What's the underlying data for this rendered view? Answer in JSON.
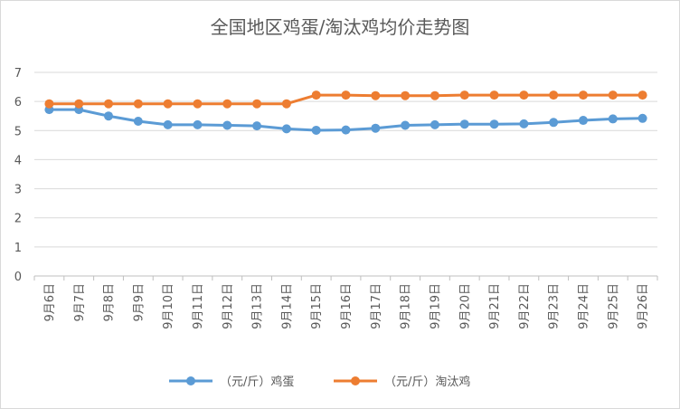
{
  "chart_data": {
    "type": "line",
    "title": "全国地区鸡蛋/淘汰鸡均价走势图",
    "categories": [
      "9月6日",
      "9月7日",
      "9月8日",
      "9月9日",
      "9月10日",
      "9月11日",
      "9月12日",
      "9月13日",
      "9月14日",
      "9月15日",
      "9月16日",
      "9月17日",
      "9月18日",
      "9月19日",
      "9月20日",
      "9月21日",
      "9月22日",
      "9月23日",
      "9月24日",
      "9月25日",
      "9月26日"
    ],
    "series": [
      {
        "name": "（元/斤）鸡蛋",
        "color": "#5b9bd5",
        "values": [
          5.72,
          5.72,
          5.5,
          5.32,
          5.2,
          5.2,
          5.18,
          5.16,
          5.06,
          5.01,
          5.02,
          5.08,
          5.18,
          5.2,
          5.22,
          5.22,
          5.23,
          5.28,
          5.35,
          5.4,
          5.42
        ]
      },
      {
        "name": "（元/斤）淘汰鸡",
        "color": "#ed7d31",
        "values": [
          5.92,
          5.92,
          5.92,
          5.92,
          5.92,
          5.92,
          5.92,
          5.92,
          5.92,
          6.22,
          6.22,
          6.2,
          6.2,
          6.2,
          6.22,
          6.22,
          6.22,
          6.22,
          6.22,
          6.22,
          6.22
        ]
      }
    ],
    "yticks": [
      "0",
      "1",
      "2",
      "3",
      "4",
      "5",
      "6",
      "7"
    ],
    "ylim": [
      0,
      7
    ],
    "grid": true,
    "legend": "bottom"
  }
}
